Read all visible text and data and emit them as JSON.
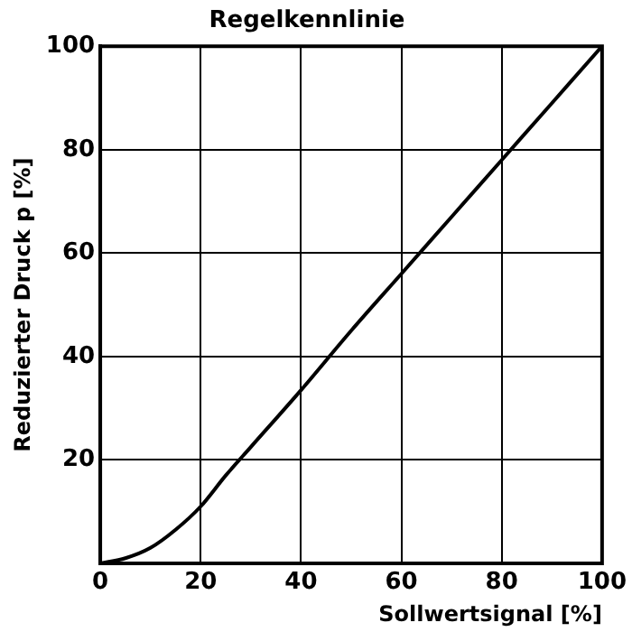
{
  "chart_data": {
    "type": "line",
    "title": "Regelkennlinie",
    "xlabel": "Sollwertsignal [%]",
    "ylabel": "Reduzierter Druck p [%]",
    "x": [
      0,
      5,
      10,
      15,
      20,
      25,
      30,
      40,
      50,
      60,
      70,
      80,
      90,
      100
    ],
    "series": [
      {
        "color": "#000000",
        "values": [
          0,
          1,
          3,
          6.5,
          11,
          17,
          22.5,
          33.5,
          45,
          56,
          67,
          78,
          89,
          100
        ]
      }
    ],
    "xlim": [
      0,
      100
    ],
    "xticks": [
      0,
      20,
      40,
      60,
      80,
      100
    ],
    "ylim": [
      0,
      100
    ],
    "yticks": [
      {
        "value": 0,
        "label": null
      },
      20,
      40,
      60,
      80,
      100
    ],
    "grid": true,
    "legend": false,
    "marker": "none",
    "line_style": "solid"
  }
}
